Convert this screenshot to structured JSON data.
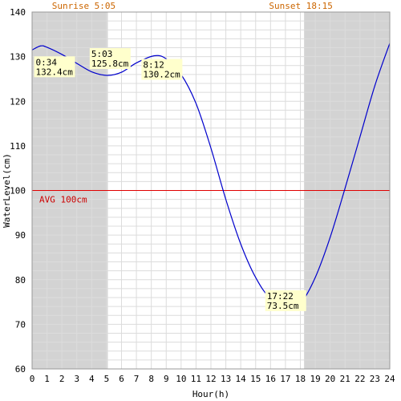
{
  "chart_data": {
    "type": "line",
    "xlabel": "Hour(h)",
    "ylabel": "WaterLevel(cm)",
    "xlim": [
      0,
      24
    ],
    "ylim": [
      60,
      140
    ],
    "x_ticks": [
      "0",
      "1",
      "2",
      "3",
      "4",
      "5",
      "6",
      "7",
      "8",
      "9",
      "10",
      "11",
      "12",
      "13",
      "14",
      "15",
      "16",
      "17",
      "18",
      "19",
      "20",
      "21",
      "22",
      "23",
      "24"
    ],
    "y_ticks": [
      "60",
      "70",
      "80",
      "90",
      "100",
      "110",
      "120",
      "130",
      "140"
    ],
    "grid": true,
    "sunrise": {
      "label": "Sunrise 5:05",
      "hour": 5.083
    },
    "sunset": {
      "label": "Sunset 18:15",
      "hour": 18.25
    },
    "average": {
      "label": "AVG 100cm",
      "value": 100
    },
    "series": [
      {
        "x": [
          0,
          0.57,
          1,
          2,
          3,
          4,
          5.05,
          6,
          7,
          8.2,
          9,
          10,
          11,
          12,
          13,
          14,
          15,
          16,
          17.37,
          18,
          19,
          20,
          21,
          22,
          23,
          24
        ],
        "y": [
          131.5,
          132.4,
          132.1,
          130.5,
          128.5,
          126.6,
          125.8,
          126.5,
          128.6,
          130.2,
          129.5,
          126,
          119.5,
          109.5,
          98,
          88,
          80.5,
          75.8,
          73.5,
          74.5,
          80.5,
          89.5,
          100.5,
          112,
          123.5,
          133
        ]
      }
    ],
    "annotations": [
      {
        "time": "0:34",
        "level": "132.4cm",
        "hour": 0.567,
        "value": 132.4
      },
      {
        "time": "5:03",
        "level": "125.8cm",
        "hour": 5.05,
        "value": 125.8
      },
      {
        "time": "8:12",
        "level": "130.2cm",
        "hour": 8.2,
        "value": 130.2
      },
      {
        "time": "17:22",
        "level": "73.5cm",
        "hour": 17.367,
        "value": 73.5
      }
    ],
    "colors": {
      "line": "#0000cc",
      "night_band": "#d3d3d3",
      "grid": "#dcdcdc",
      "avg_line": "#e00000",
      "sun_text": "#cc6600",
      "annotation_bg": "#ffffcc"
    }
  }
}
